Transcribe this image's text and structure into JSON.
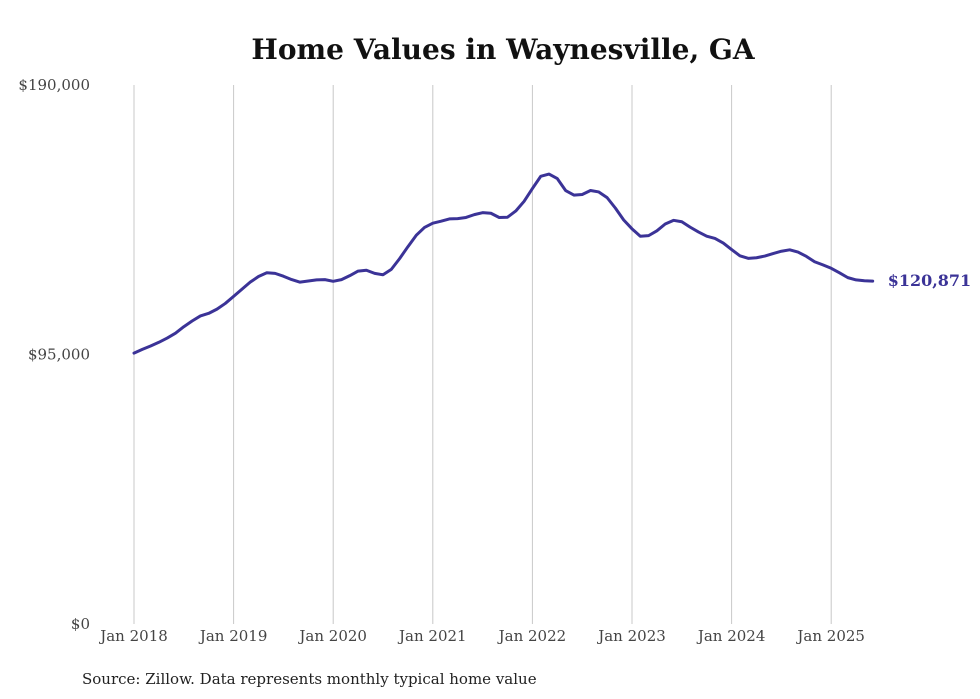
{
  "chart_data": {
    "type": "line",
    "title": "Home Values in Waynesville, GA",
    "xlabel": "",
    "ylabel": "",
    "ylim": [
      0,
      190000
    ],
    "xlim": [
      "2018-01",
      "2025-07"
    ],
    "grid": {
      "vertical": true,
      "horizontal": false
    },
    "y_ticks": [
      {
        "value": 0,
        "label": "$0"
      },
      {
        "value": 95000,
        "label": "$95,000"
      },
      {
        "value": 190000,
        "label": "$190,000"
      }
    ],
    "x_ticks": [
      {
        "value": "2018-01",
        "label": "Jan 2018"
      },
      {
        "value": "2019-01",
        "label": "Jan 2019"
      },
      {
        "value": "2020-01",
        "label": "Jan 2020"
      },
      {
        "value": "2021-01",
        "label": "Jan 2021"
      },
      {
        "value": "2022-01",
        "label": "Jan 2022"
      },
      {
        "value": "2023-01",
        "label": "Jan 2023"
      },
      {
        "value": "2024-01",
        "label": "Jan 2024"
      },
      {
        "value": "2025-01",
        "label": "Jan 2025"
      }
    ],
    "series": [
      {
        "color": "#3b3397",
        "end_label": "$120,871",
        "points": [
          [
            "2018-01",
            95500
          ],
          [
            "2018-02",
            96800
          ],
          [
            "2018-03",
            98000
          ],
          [
            "2018-04",
            99300
          ],
          [
            "2018-05",
            100800
          ],
          [
            "2018-06",
            102500
          ],
          [
            "2018-07",
            104800
          ],
          [
            "2018-08",
            106800
          ],
          [
            "2018-09",
            108600
          ],
          [
            "2018-10",
            109500
          ],
          [
            "2018-11",
            111000
          ],
          [
            "2018-12",
            113000
          ],
          [
            "2019-01",
            115500
          ],
          [
            "2019-02",
            118000
          ],
          [
            "2019-03",
            120500
          ],
          [
            "2019-04",
            122500
          ],
          [
            "2019-05",
            123800
          ],
          [
            "2019-06",
            123600
          ],
          [
            "2019-07",
            122600
          ],
          [
            "2019-08",
            121400
          ],
          [
            "2019-09",
            120500
          ],
          [
            "2019-10",
            120900
          ],
          [
            "2019-11",
            121300
          ],
          [
            "2019-12",
            121400
          ],
          [
            "2020-01",
            120800
          ],
          [
            "2020-02",
            121400
          ],
          [
            "2020-03",
            122800
          ],
          [
            "2020-04",
            124400
          ],
          [
            "2020-05",
            124700
          ],
          [
            "2020-06",
            123600
          ],
          [
            "2020-07",
            123100
          ],
          [
            "2020-08",
            125000
          ],
          [
            "2020-09",
            128800
          ],
          [
            "2020-10",
            133000
          ],
          [
            "2020-11",
            137000
          ],
          [
            "2020-12",
            139800
          ],
          [
            "2021-01",
            141300
          ],
          [
            "2021-02",
            142000
          ],
          [
            "2021-03",
            142800
          ],
          [
            "2021-04",
            142900
          ],
          [
            "2021-05",
            143300
          ],
          [
            "2021-06",
            144300
          ],
          [
            "2021-07",
            145000
          ],
          [
            "2021-08",
            144800
          ],
          [
            "2021-09",
            143300
          ],
          [
            "2021-10",
            143400
          ],
          [
            "2021-11",
            145600
          ],
          [
            "2021-12",
            149000
          ],
          [
            "2022-01",
            153500
          ],
          [
            "2022-02",
            157800
          ],
          [
            "2022-03",
            158600
          ],
          [
            "2022-04",
            157000
          ],
          [
            "2022-05",
            152800
          ],
          [
            "2022-06",
            151200
          ],
          [
            "2022-07",
            151400
          ],
          [
            "2022-08",
            152800
          ],
          [
            "2022-09",
            152300
          ],
          [
            "2022-10",
            150300
          ],
          [
            "2022-11",
            146600
          ],
          [
            "2022-12",
            142400
          ],
          [
            "2023-01",
            139300
          ],
          [
            "2023-02",
            136700
          ],
          [
            "2023-03",
            136900
          ],
          [
            "2023-04",
            138600
          ],
          [
            "2023-05",
            141000
          ],
          [
            "2023-06",
            142300
          ],
          [
            "2023-07",
            141800
          ],
          [
            "2023-08",
            139900
          ],
          [
            "2023-09",
            138200
          ],
          [
            "2023-10",
            136700
          ],
          [
            "2023-11",
            135900
          ],
          [
            "2023-12",
            134300
          ],
          [
            "2024-01",
            132000
          ],
          [
            "2024-02",
            129800
          ],
          [
            "2024-03",
            128900
          ],
          [
            "2024-04",
            129100
          ],
          [
            "2024-05",
            129700
          ],
          [
            "2024-06",
            130600
          ],
          [
            "2024-07",
            131400
          ],
          [
            "2024-08",
            131900
          ],
          [
            "2024-09",
            131100
          ],
          [
            "2024-10",
            129600
          ],
          [
            "2024-11",
            127700
          ],
          [
            "2024-12",
            126600
          ],
          [
            "2025-01",
            125400
          ],
          [
            "2025-02",
            123800
          ],
          [
            "2025-03",
            122100
          ],
          [
            "2025-04",
            121300
          ],
          [
            "2025-05",
            121000
          ],
          [
            "2025-06",
            120871
          ]
        ]
      }
    ]
  },
  "source_note": "Source: Zillow. Data represents monthly typical home value"
}
